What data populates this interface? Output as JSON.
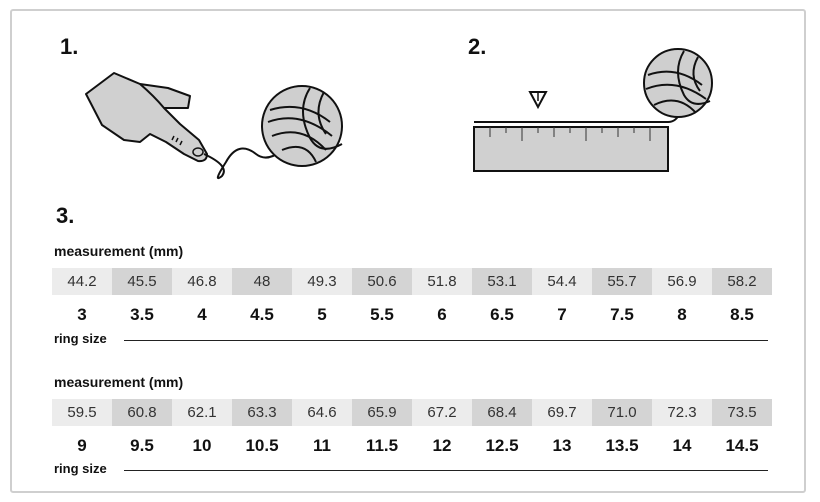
{
  "steps": [
    "1.",
    "2.",
    "3."
  ],
  "table1": {
    "caption": "measurement (mm)",
    "measurements": [
      "44.2",
      "45.5",
      "46.8",
      "48",
      "49.3",
      "50.6",
      "51.8",
      "53.1",
      "54.4",
      "55.7",
      "56.9",
      "58.2"
    ],
    "sizes": [
      "3",
      "3.5",
      "4",
      "4.5",
      "5",
      "5.5",
      "6",
      "6.5",
      "7",
      "7.5",
      "8",
      "8.5"
    ],
    "ring_label": "ring size"
  },
  "table2": {
    "caption": "measurement (mm)",
    "measurements": [
      "59.5",
      "60.8",
      "62.1",
      "63.3",
      "64.6",
      "65.9",
      "67.2",
      "68.4",
      "69.7",
      "71.0",
      "72.3",
      "73.5"
    ],
    "sizes": [
      "9",
      "9.5",
      "10",
      "10.5",
      "11",
      "11.5",
      "12",
      "12.5",
      "13",
      "13.5",
      "14",
      "14.5"
    ],
    "ring_label": "ring size"
  },
  "illustrations": {
    "step1": [
      "pointing-hand-icon",
      "yarn-ball-icon"
    ],
    "step2": [
      "marker-arrow-icon",
      "ruler-icon",
      "yarn-ball-icon"
    ]
  },
  "colors": {
    "cell_light": "#ececec",
    "cell_dark": "#d4d4d4",
    "border": "#cfcfcf"
  }
}
